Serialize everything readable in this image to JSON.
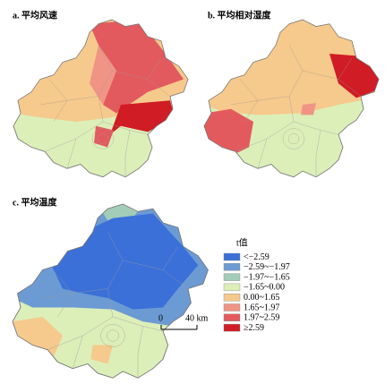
{
  "panels": [
    {
      "label": "a. 平均风速"
    },
    {
      "label": "b. 平均相对湿度"
    },
    {
      "label": "c. 平均温度"
    }
  ],
  "legend": {
    "title": "t值",
    "items": [
      {
        "label": "<−2.59",
        "color": "#3b70d9"
      },
      {
        "label": "−2.59~−1.97",
        "color": "#6c9bd3"
      },
      {
        "label": "−1.97~−1.65",
        "color": "#a3cdb8"
      },
      {
        "label": "−1.65~0.00",
        "color": "#dcefb9"
      },
      {
        "label": "0.00~1.65",
        "color": "#f6c98c"
      },
      {
        "label": "1.65~1.97",
        "color": "#f09486"
      },
      {
        "label": "1.97~2.59",
        "color": "#e35a5e"
      },
      {
        "label": "≥2.59",
        "color": "#d01c24"
      }
    ]
  },
  "scale_bar": {
    "start": "0",
    "end": "40 km"
  }
}
